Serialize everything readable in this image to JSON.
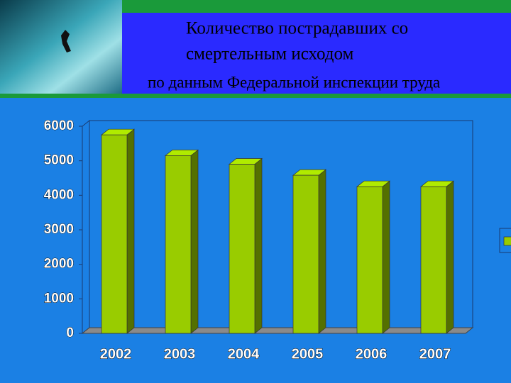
{
  "chart_data": {
    "type": "bar3d",
    "title": [
      "Количество пострадавших со",
      "смертельным исходом"
    ],
    "subtitle": "по данным Федеральной инспекции труда",
    "categories": [
      "2002",
      "2003",
      "2004",
      "2005",
      "2006",
      "2007"
    ],
    "values": [
      5750,
      5150,
      4900,
      4580,
      4250,
      4250
    ],
    "color": "#99cc00",
    "ylim": [
      0,
      6000
    ],
    "yticks": [
      0,
      1000,
      2000,
      3000,
      4000,
      5000,
      6000
    ],
    "legend": "right"
  }
}
